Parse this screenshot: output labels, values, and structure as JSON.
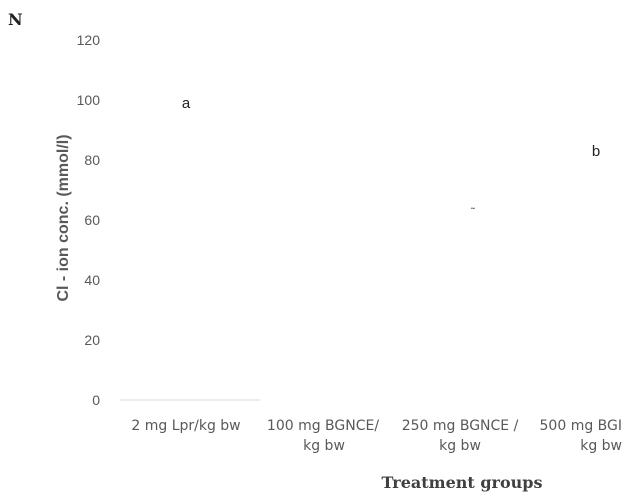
{
  "corner_mark": "N",
  "chart_data": {
    "type": "bar",
    "categories": [
      [
        "2 mg Lpr/kg bw"
      ],
      [
        "100 mg BGNCE/",
        "kg bw"
      ],
      [
        "250 mg BGNCE /",
        "kg bw"
      ],
      [
        "500 mg BGI",
        "kg bw"
      ]
    ],
    "values": [
      0,
      0,
      0,
      0
    ],
    "data_labels": [
      "a",
      "",
      "",
      "b"
    ],
    "ylim": [
      0,
      120
    ],
    "yticks": [
      0,
      20,
      40,
      60,
      80,
      100,
      120
    ],
    "ylabel": "Cl - ion conc. (mmol/l)",
    "xlabel": "Treatment groups",
    "grid": false,
    "colors": {
      "text": "#595959",
      "axis": "#d9d9d9",
      "title": "#404040"
    }
  }
}
